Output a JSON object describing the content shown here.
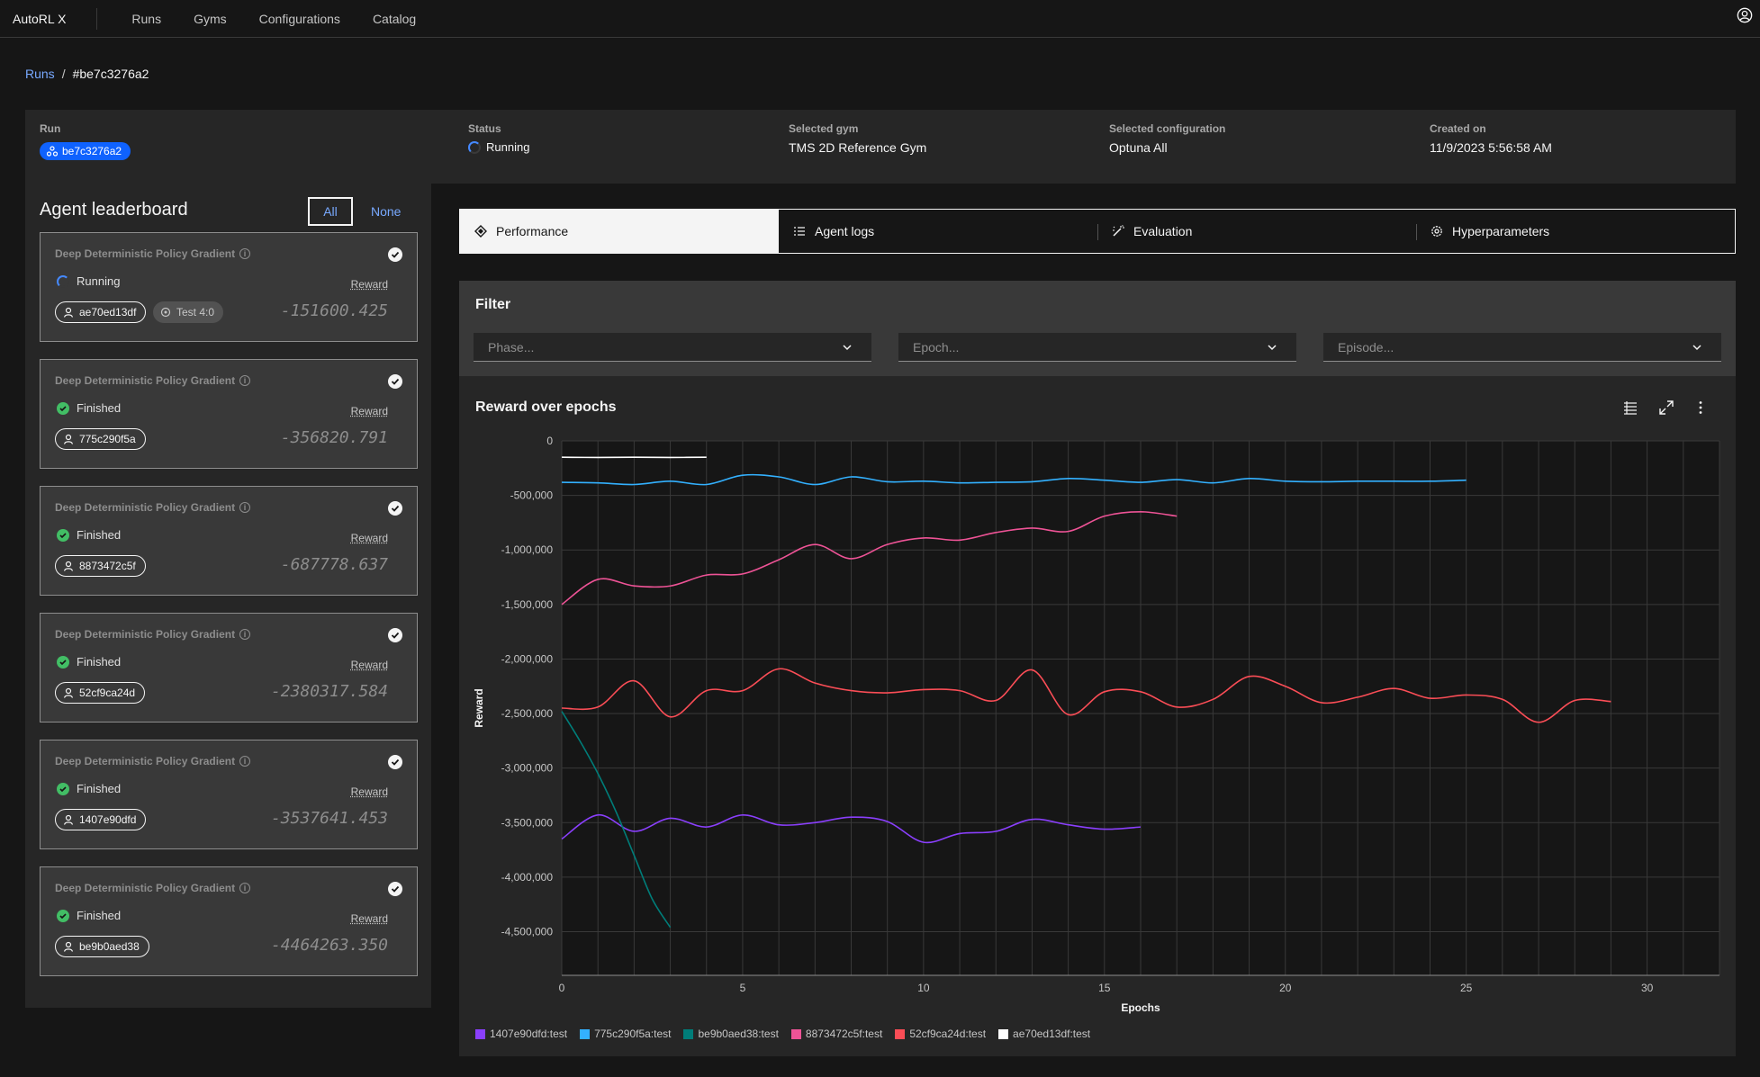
{
  "header": {
    "brand": "AutoRL X",
    "nav": [
      "Runs",
      "Gyms",
      "Configurations",
      "Catalog"
    ]
  },
  "breadcrumb": {
    "parent": "Runs",
    "separator": "/",
    "current": "#be7c3276a2"
  },
  "summary": {
    "run_label": "Run",
    "run_id": "be7c3276a2",
    "status_label": "Status",
    "status": "Running",
    "gym_label": "Selected gym",
    "gym": "TMS 2D Reference Gym",
    "config_label": "Selected configuration",
    "config": "Optuna All",
    "created_label": "Created on",
    "created": "11/9/2023 5:56:58 AM"
  },
  "leaderboard": {
    "title": "Agent leaderboard",
    "all_label": "All",
    "none_label": "None",
    "agents": [
      {
        "name": "Deep Deterministic Policy Gradient",
        "status": "Running",
        "reward_label": "Reward",
        "id": "ae70ed13df",
        "extra_tag": "Test 4:0",
        "value": "-151600.425"
      },
      {
        "name": "Deep Deterministic Policy Gradient",
        "status": "Finished",
        "reward_label": "Reward",
        "id": "775c290f5a",
        "value": "-356820.791"
      },
      {
        "name": "Deep Deterministic Policy Gradient",
        "status": "Finished",
        "reward_label": "Reward",
        "id": "8873472c5f",
        "value": "-687778.637"
      },
      {
        "name": "Deep Deterministic Policy Gradient",
        "status": "Finished",
        "reward_label": "Reward",
        "id": "52cf9ca24d",
        "value": "-2380317.584"
      },
      {
        "name": "Deep Deterministic Policy Gradient",
        "status": "Finished",
        "reward_label": "Reward",
        "id": "1407e90dfd",
        "value": "-3537641.453"
      },
      {
        "name": "Deep Deterministic Policy Gradient",
        "status": "Finished",
        "reward_label": "Reward",
        "id": "be9b0aed38",
        "value": "-4464263.350"
      }
    ]
  },
  "tabs": [
    "Performance",
    "Agent logs",
    "Evaluation",
    "Hyperparameters"
  ],
  "filter": {
    "title": "Filter",
    "phase_placeholder": "Phase...",
    "epoch_placeholder": "Epoch...",
    "episode_placeholder": "Episode..."
  },
  "chart_data": {
    "type": "line",
    "title": "Reward over epochs",
    "xlabel": "Epochs",
    "ylabel": "Reward",
    "xlim": [
      0,
      32
    ],
    "ylim": [
      -4900000,
      0
    ],
    "xticks": [
      0,
      5,
      10,
      15,
      20,
      25,
      30
    ],
    "yticks": [
      0,
      -500000,
      -1000000,
      -1500000,
      -2000000,
      -2500000,
      -3000000,
      -3500000,
      -4000000,
      -4500000
    ],
    "ytick_labels": [
      "0",
      "-500,000",
      "-1,000,000",
      "-1,500,000",
      "-2,000,000",
      "-2,500,000",
      "-3,000,000",
      "-3,500,000",
      "-4,000,000",
      "-4,500,000"
    ],
    "grid": true,
    "legend_position": "bottom-left",
    "series": [
      {
        "name": "1407e90dfd:test",
        "color": "#8a3ffc",
        "x": [
          0,
          1,
          2,
          3,
          4,
          5,
          6,
          7,
          8,
          9,
          10,
          11,
          12,
          13,
          14,
          15,
          16
        ],
        "values": [
          -3650000,
          -3430000,
          -3580000,
          -3460000,
          -3540000,
          -3430000,
          -3520000,
          -3500000,
          -3450000,
          -3490000,
          -3680000,
          -3600000,
          -3580000,
          -3470000,
          -3520000,
          -3560000,
          -3540000
        ]
      },
      {
        "name": "775c290f5a:test",
        "color": "#33b1ff",
        "x": [
          0,
          1,
          2,
          3,
          4,
          5,
          6,
          7,
          8,
          9,
          10,
          11,
          12,
          13,
          14,
          15,
          16,
          17,
          18,
          19,
          20,
          21,
          22,
          23,
          24,
          25
        ],
        "values": [
          -380000,
          -385000,
          -400000,
          -370000,
          -400000,
          -315000,
          -330000,
          -400000,
          -330000,
          -375000,
          -370000,
          -385000,
          -380000,
          -375000,
          -345000,
          -360000,
          -380000,
          -355000,
          -385000,
          -345000,
          -370000,
          -375000,
          -370000,
          -370000,
          -370000,
          -360000
        ]
      },
      {
        "name": "be9b0aed38:test",
        "color": "#007d79",
        "x": [
          0,
          0.5,
          1,
          1.5,
          2,
          2.5,
          3
        ],
        "values": [
          -2480000,
          -2750000,
          -3050000,
          -3400000,
          -3800000,
          -4200000,
          -4460000
        ]
      },
      {
        "name": "8873472c5f:test",
        "color": "#ee5396",
        "x": [
          0,
          1,
          2,
          3,
          4,
          5,
          6,
          7,
          8,
          9,
          10,
          11,
          12,
          13,
          14,
          15,
          16,
          17
        ],
        "values": [
          -1500000,
          -1270000,
          -1330000,
          -1330000,
          -1230000,
          -1220000,
          -1090000,
          -950000,
          -1080000,
          -950000,
          -890000,
          -910000,
          -840000,
          -800000,
          -830000,
          -690000,
          -650000,
          -690000
        ]
      },
      {
        "name": "52cf9ca24d:test",
        "color": "#fa4d56",
        "x": [
          0,
          1,
          2,
          3,
          4,
          5,
          6,
          7,
          8,
          9,
          10,
          11,
          12,
          13,
          14,
          15,
          16,
          17,
          18,
          19,
          20,
          21,
          22,
          23,
          24,
          25,
          26,
          27,
          28,
          29
        ],
        "values": [
          -2450000,
          -2440000,
          -2200000,
          -2530000,
          -2290000,
          -2290000,
          -2090000,
          -2220000,
          -2290000,
          -2310000,
          -2280000,
          -2290000,
          -2380000,
          -2100000,
          -2510000,
          -2300000,
          -2300000,
          -2440000,
          -2370000,
          -2160000,
          -2250000,
          -2400000,
          -2350000,
          -2270000,
          -2360000,
          -2330000,
          -2370000,
          -2580000,
          -2380000,
          -2390000
        ]
      },
      {
        "name": "ae70ed13df:test",
        "color": "#ffffff",
        "x": [
          0,
          1,
          2,
          3,
          4
        ],
        "values": [
          -150000,
          -152000,
          -150000,
          -152000,
          -150000
        ]
      }
    ]
  }
}
